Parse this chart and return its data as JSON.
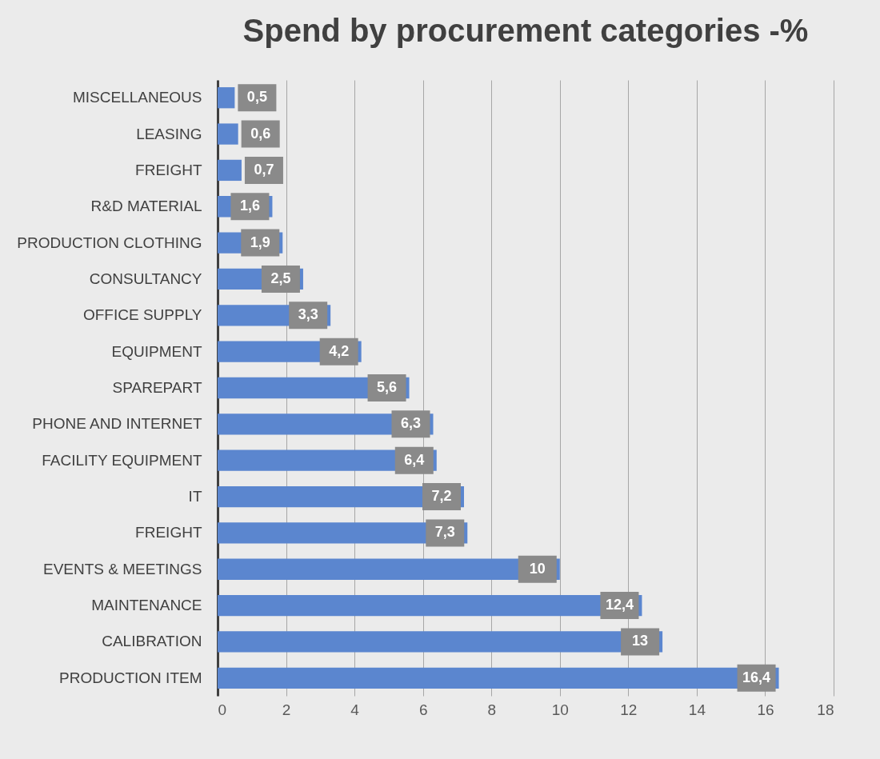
{
  "chart_data": {
    "type": "bar",
    "orientation": "horizontal",
    "title": "Spend by procurement categories -%",
    "categories": [
      "MISCELLANEOUS",
      "LEASING",
      "FREIGHT",
      "R&D MATERIAL",
      "PRODUCTION CLOTHING",
      "CONSULTANCY",
      "OFFICE SUPPLY",
      "EQUIPMENT",
      "SPAREPART",
      "PHONE AND INTERNET",
      "FACILITY EQUIPMENT",
      "IT",
      "FREIGHT",
      "EVENTS & MEETINGS",
      "MAINTENANCE",
      "CALIBRATION",
      "PRODUCTION ITEM"
    ],
    "values": [
      0.5,
      0.6,
      0.7,
      1.6,
      1.9,
      2.5,
      3.3,
      4.2,
      5.6,
      6.3,
      6.4,
      7.2,
      7.3,
      10,
      12.4,
      13,
      16.4
    ],
    "value_labels": [
      "0,5",
      "0,6",
      "0,7",
      "1,6",
      "1,9",
      "2,5",
      "3,3",
      "4,2",
      "5,6",
      "6,3",
      "6,4",
      "7,2",
      "7,3",
      "10",
      "12,4",
      "13",
      "16,4"
    ],
    "color": "#5b86cf",
    "xlim": [
      0,
      18
    ],
    "xticks": [
      0,
      2,
      4,
      6,
      8,
      10,
      12,
      14,
      16,
      18
    ],
    "grid": "x"
  }
}
